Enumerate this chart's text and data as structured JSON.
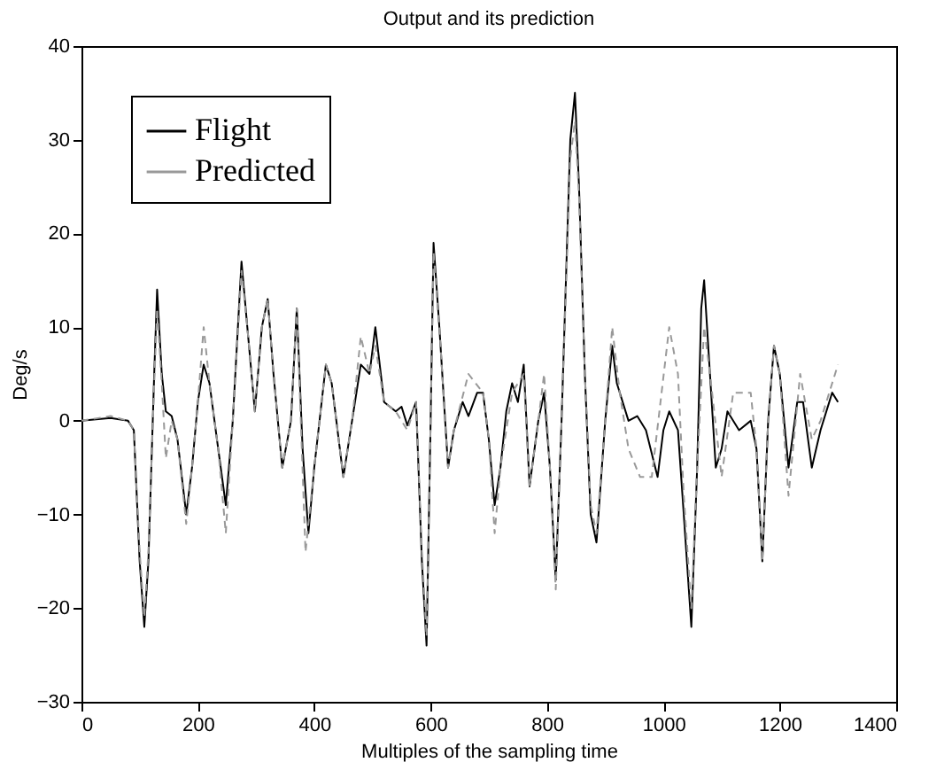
{
  "chart_data": {
    "type": "line",
    "title": "Output and its prediction",
    "xlabel": "Multiples of the sampling time",
    "ylabel": "Deg/s",
    "xlim": [
      0,
      1400
    ],
    "ylim": [
      -30,
      40
    ],
    "xticks": [
      0,
      200,
      400,
      600,
      800,
      1000,
      1200,
      1400
    ],
    "yticks": [
      -30,
      -20,
      -10,
      0,
      10,
      20,
      30,
      40
    ],
    "grid": false,
    "legend": "top left",
    "series": [
      {
        "name": "Flight",
        "color": "#000000",
        "line_style": "solid",
        "x": [
          0,
          50,
          80,
          90,
          100,
          108,
          115,
          125,
          130,
          138,
          145,
          155,
          165,
          180,
          190,
          200,
          210,
          220,
          235,
          248,
          260,
          275,
          285,
          298,
          310,
          320,
          330,
          345,
          360,
          370,
          380,
          390,
          400,
          420,
          430,
          450,
          465,
          480,
          495,
          505,
          520,
          540,
          550,
          560,
          575,
          585,
          593,
          600,
          605,
          615,
          630,
          640,
          655,
          665,
          680,
          690,
          700,
          710,
          720,
          730,
          740,
          750,
          760,
          770,
          785,
          795,
          805,
          815,
          825,
          840,
          848,
          855,
          865,
          875,
          885,
          900,
          912,
          920,
          940,
          955,
          970,
          990,
          1000,
          1010,
          1025,
          1035,
          1048,
          1058,
          1065,
          1070,
          1080,
          1090,
          1100,
          1110,
          1130,
          1150,
          1160,
          1170,
          1180,
          1190,
          1200,
          1215,
          1230,
          1240,
          1255,
          1270,
          1290,
          1300
        ],
        "values": [
          0,
          0.3,
          0,
          -1,
          -15,
          -22,
          -15,
          5,
          14,
          5,
          1,
          0.5,
          -2,
          -10,
          -5,
          2,
          6,
          4,
          -3,
          -9,
          0,
          17,
          10,
          1,
          10,
          13,
          5,
          -5,
          0,
          12,
          -3,
          -12,
          -5,
          6,
          4,
          -6,
          0,
          6,
          5,
          10,
          2,
          1,
          1.5,
          -0.5,
          2,
          -15,
          -24,
          0,
          19,
          10,
          -5,
          -1,
          2,
          0.5,
          3,
          3,
          -2,
          -9,
          -5,
          1,
          4,
          2,
          6,
          -7,
          0,
          3,
          -5,
          -17,
          0,
          30,
          35,
          25,
          5,
          -10,
          -13,
          0,
          8,
          4,
          0,
          0.5,
          -1,
          -6,
          -1,
          1,
          -1,
          -10,
          -22,
          -5,
          12,
          15,
          5,
          -5,
          -3,
          1,
          -1,
          0,
          -3,
          -15,
          0,
          8,
          5,
          -5,
          2,
          2,
          -5,
          -1,
          3,
          2
        ]
      },
      {
        "name": "Predicted",
        "color": "#999999",
        "line_style": "dashed",
        "x": [
          0,
          50,
          80,
          90,
          100,
          108,
          115,
          125,
          130,
          138,
          145,
          155,
          165,
          180,
          190,
          200,
          210,
          220,
          235,
          248,
          260,
          275,
          285,
          298,
          310,
          320,
          330,
          345,
          360,
          370,
          385,
          400,
          420,
          430,
          450,
          465,
          480,
          495,
          505,
          520,
          540,
          560,
          575,
          585,
          593,
          600,
          605,
          615,
          630,
          640,
          665,
          690,
          700,
          710,
          720,
          740,
          760,
          770,
          785,
          795,
          805,
          815,
          825,
          840,
          848,
          855,
          865,
          875,
          885,
          900,
          912,
          925,
          940,
          960,
          980,
          995,
          1010,
          1025,
          1035,
          1048,
          1058,
          1070,
          1080,
          1100,
          1120,
          1150,
          1160,
          1170,
          1180,
          1190,
          1200,
          1215,
          1235,
          1255,
          1270,
          1300
        ],
        "values": [
          0,
          0.5,
          0,
          -1,
          -14,
          -21,
          -14,
          4,
          12,
          4,
          -4,
          0,
          -2,
          -11,
          -5,
          2,
          10,
          4,
          -3,
          -12,
          0,
          16,
          10,
          1,
          10,
          13,
          5,
          -5,
          0,
          12,
          -14,
          -5,
          6,
          4,
          -6,
          0,
          9,
          5,
          8,
          2,
          1,
          -1,
          2,
          -14,
          -23,
          0,
          18,
          10,
          -5,
          -1,
          5,
          3,
          -2,
          -12,
          -5,
          3,
          5,
          -7,
          0,
          5,
          -5,
          -18,
          0,
          28,
          32,
          24,
          5,
          -9,
          -12,
          0,
          10,
          3,
          -3,
          -6,
          -6,
          2,
          10,
          5,
          -8,
          -20,
          -5,
          10,
          5,
          -6,
          3,
          3,
          -3,
          -15,
          0,
          8,
          5,
          -8,
          5,
          -2,
          0,
          6
        ]
      }
    ]
  }
}
